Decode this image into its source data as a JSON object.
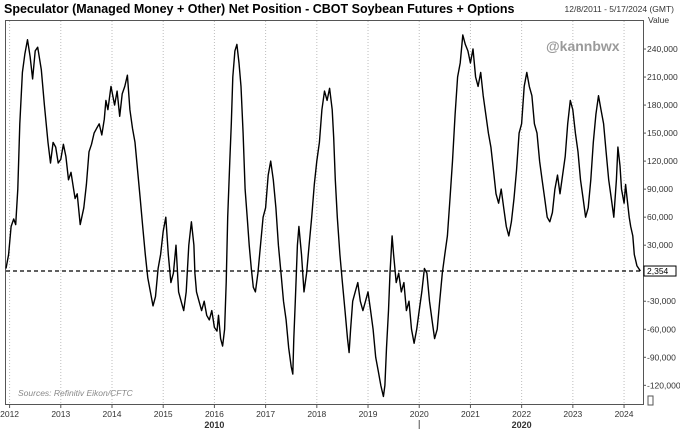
{
  "header": {
    "title": "Speculator (Managed Money + Other) Net Position - CBOT Soybean Futures + Options",
    "date_range": "12/8/2011 - 5/17/2024 (GMT)",
    "value_label": "Value"
  },
  "watermark": "@kannbwx",
  "source": "Sources: Refinitiv Eikon/CFTC",
  "colors": {
    "line": "#000000",
    "reference": "#000000",
    "grid": "#bdbdbd",
    "last_value_box": "#000000"
  },
  "chart_data": {
    "type": "line",
    "title": "Speculator (Managed Money + Other) Net Position - CBOT Soybean Futures + Options",
    "xlabel": "",
    "ylabel": "Value",
    "x_range": [
      2011.93,
      2024.37
    ],
    "ylim": [
      -140000,
      270000
    ],
    "y_ticks": [
      -120000,
      -90000,
      -60000,
      -30000,
      0,
      30000,
      60000,
      90000,
      120000,
      150000,
      180000,
      210000,
      240000
    ],
    "y_tick_labels": [
      "-120,000",
      "-90,000",
      "-60,000",
      "-30,000",
      "0",
      "30,000",
      "60,000",
      "90,000",
      "120,000",
      "150,000",
      "180,000",
      "210,000",
      "240,000"
    ],
    "x_ticks": [
      2012,
      2013,
      2014,
      2015,
      2016,
      2017,
      2018,
      2019,
      2020,
      2021,
      2022,
      2023,
      2024
    ],
    "x_tick_labels": [
      "2012",
      "2013",
      "2014",
      "2015",
      "2016",
      "2017",
      "2018",
      "2019",
      "2020",
      "2021",
      "2022",
      "2023",
      "2024"
    ],
    "decade_labels": [
      {
        "x": 2016,
        "label": "2010"
      },
      {
        "x": 2022,
        "label": "2020"
      }
    ],
    "grid": "vertical dotted at year ticks",
    "reference_line": {
      "y": 2354,
      "style": "dashed"
    },
    "last_value": 2354,
    "last_value_label": "2,354",
    "series": [
      {
        "values": [
          [
            2011.93,
            5000
          ],
          [
            2011.98,
            20000
          ],
          [
            2012.03,
            50000
          ],
          [
            2012.08,
            58000
          ],
          [
            2012.12,
            52000
          ],
          [
            2012.16,
            90000
          ],
          [
            2012.2,
            160000
          ],
          [
            2012.25,
            215000
          ],
          [
            2012.3,
            235000
          ],
          [
            2012.35,
            250000
          ],
          [
            2012.4,
            232000
          ],
          [
            2012.45,
            208000
          ],
          [
            2012.5,
            238000
          ],
          [
            2012.55,
            242000
          ],
          [
            2012.62,
            218000
          ],
          [
            2012.68,
            180000
          ],
          [
            2012.75,
            140000
          ],
          [
            2012.8,
            118000
          ],
          [
            2012.85,
            140000
          ],
          [
            2012.9,
            135000
          ],
          [
            2012.95,
            118000
          ],
          [
            2013.0,
            122000
          ],
          [
            2013.05,
            138000
          ],
          [
            2013.1,
            125000
          ],
          [
            2013.15,
            100000
          ],
          [
            2013.2,
            108000
          ],
          [
            2013.25,
            90000
          ],
          [
            2013.28,
            80000
          ],
          [
            2013.32,
            85000
          ],
          [
            2013.38,
            52000
          ],
          [
            2013.45,
            70000
          ],
          [
            2013.5,
            95000
          ],
          [
            2013.55,
            130000
          ],
          [
            2013.6,
            138000
          ],
          [
            2013.65,
            150000
          ],
          [
            2013.7,
            155000
          ],
          [
            2013.75,
            160000
          ],
          [
            2013.8,
            148000
          ],
          [
            2013.85,
            165000
          ],
          [
            2013.88,
            185000
          ],
          [
            2013.92,
            175000
          ],
          [
            2013.98,
            200000
          ],
          [
            2014.05,
            180000
          ],
          [
            2014.1,
            195000
          ],
          [
            2014.15,
            168000
          ],
          [
            2014.2,
            192000
          ],
          [
            2014.25,
            200000
          ],
          [
            2014.3,
            212000
          ],
          [
            2014.35,
            175000
          ],
          [
            2014.4,
            155000
          ],
          [
            2014.45,
            140000
          ],
          [
            2014.5,
            110000
          ],
          [
            2014.55,
            80000
          ],
          [
            2014.6,
            50000
          ],
          [
            2014.65,
            20000
          ],
          [
            2014.7,
            -5000
          ],
          [
            2014.75,
            -20000
          ],
          [
            2014.8,
            -35000
          ],
          [
            2014.85,
            -25000
          ],
          [
            2014.9,
            5000
          ],
          [
            2014.95,
            20000
          ],
          [
            2015.0,
            45000
          ],
          [
            2015.05,
            60000
          ],
          [
            2015.1,
            20000
          ],
          [
            2015.15,
            -10000
          ],
          [
            2015.2,
            0
          ],
          [
            2015.25,
            30000
          ],
          [
            2015.3,
            -20000
          ],
          [
            2015.35,
            -30000
          ],
          [
            2015.4,
            -40000
          ],
          [
            2015.45,
            -20000
          ],
          [
            2015.5,
            30000
          ],
          [
            2015.55,
            55000
          ],
          [
            2015.6,
            30000
          ],
          [
            2015.62,
            0
          ],
          [
            2015.65,
            -20000
          ],
          [
            2015.7,
            -30000
          ],
          [
            2015.75,
            -40000
          ],
          [
            2015.8,
            -30000
          ],
          [
            2015.85,
            -45000
          ],
          [
            2015.9,
            -50000
          ],
          [
            2015.95,
            -40000
          ],
          [
            2016.0,
            -58000
          ],
          [
            2016.05,
            -62000
          ],
          [
            2016.08,
            -45000
          ],
          [
            2016.12,
            -70000
          ],
          [
            2016.16,
            -78000
          ],
          [
            2016.2,
            -60000
          ],
          [
            2016.23,
            -10000
          ],
          [
            2016.26,
            60000
          ],
          [
            2016.3,
            120000
          ],
          [
            2016.33,
            160000
          ],
          [
            2016.36,
            210000
          ],
          [
            2016.4,
            238000
          ],
          [
            2016.44,
            245000
          ],
          [
            2016.48,
            225000
          ],
          [
            2016.52,
            200000
          ],
          [
            2016.56,
            150000
          ],
          [
            2016.6,
            90000
          ],
          [
            2016.64,
            60000
          ],
          [
            2016.68,
            30000
          ],
          [
            2016.72,
            5000
          ],
          [
            2016.76,
            -15000
          ],
          [
            2016.8,
            -20000
          ],
          [
            2016.85,
            0
          ],
          [
            2016.9,
            30000
          ],
          [
            2016.95,
            60000
          ],
          [
            2017.0,
            70000
          ],
          [
            2017.05,
            105000
          ],
          [
            2017.1,
            120000
          ],
          [
            2017.15,
            100000
          ],
          [
            2017.2,
            70000
          ],
          [
            2017.25,
            30000
          ],
          [
            2017.3,
            0
          ],
          [
            2017.35,
            -30000
          ],
          [
            2017.4,
            -50000
          ],
          [
            2017.45,
            -80000
          ],
          [
            2017.5,
            -100000
          ],
          [
            2017.53,
            -108000
          ],
          [
            2017.55,
            -70000
          ],
          [
            2017.58,
            -30000
          ],
          [
            2017.62,
            30000
          ],
          [
            2017.65,
            50000
          ],
          [
            2017.7,
            20000
          ],
          [
            2017.75,
            -20000
          ],
          [
            2017.8,
            0
          ],
          [
            2017.85,
            30000
          ],
          [
            2017.9,
            60000
          ],
          [
            2017.95,
            95000
          ],
          [
            2018.0,
            120000
          ],
          [
            2018.05,
            140000
          ],
          [
            2018.1,
            175000
          ],
          [
            2018.15,
            195000
          ],
          [
            2018.2,
            185000
          ],
          [
            2018.25,
            198000
          ],
          [
            2018.3,
            175000
          ],
          [
            2018.33,
            145000
          ],
          [
            2018.36,
            100000
          ],
          [
            2018.4,
            60000
          ],
          [
            2018.45,
            20000
          ],
          [
            2018.5,
            -10000
          ],
          [
            2018.55,
            -40000
          ],
          [
            2018.6,
            -70000
          ],
          [
            2018.63,
            -85000
          ],
          [
            2018.66,
            -60000
          ],
          [
            2018.7,
            -30000
          ],
          [
            2018.75,
            -20000
          ],
          [
            2018.8,
            -10000
          ],
          [
            2018.85,
            -30000
          ],
          [
            2018.9,
            -40000
          ],
          [
            2018.95,
            -30000
          ],
          [
            2019.0,
            -20000
          ],
          [
            2019.05,
            -40000
          ],
          [
            2019.1,
            -60000
          ],
          [
            2019.15,
            -90000
          ],
          [
            2019.2,
            -105000
          ],
          [
            2019.25,
            -120000
          ],
          [
            2019.3,
            -132000
          ],
          [
            2019.33,
            -120000
          ],
          [
            2019.36,
            -80000
          ],
          [
            2019.4,
            -40000
          ],
          [
            2019.43,
            0
          ],
          [
            2019.47,
            40000
          ],
          [
            2019.5,
            20000
          ],
          [
            2019.55,
            -10000
          ],
          [
            2019.6,
            0
          ],
          [
            2019.65,
            -20000
          ],
          [
            2019.7,
            -10000
          ],
          [
            2019.75,
            -40000
          ],
          [
            2019.8,
            -30000
          ],
          [
            2019.85,
            -60000
          ],
          [
            2019.9,
            -75000
          ],
          [
            2019.95,
            -60000
          ],
          [
            2020.0,
            -40000
          ],
          [
            2020.05,
            -20000
          ],
          [
            2020.1,
            5000
          ],
          [
            2020.15,
            0
          ],
          [
            2020.2,
            -30000
          ],
          [
            2020.25,
            -50000
          ],
          [
            2020.3,
            -70000
          ],
          [
            2020.35,
            -60000
          ],
          [
            2020.4,
            -30000
          ],
          [
            2020.45,
            0
          ],
          [
            2020.5,
            20000
          ],
          [
            2020.55,
            40000
          ],
          [
            2020.6,
            80000
          ],
          [
            2020.65,
            120000
          ],
          [
            2020.7,
            170000
          ],
          [
            2020.75,
            210000
          ],
          [
            2020.8,
            225000
          ],
          [
            2020.85,
            255000
          ],
          [
            2020.9,
            245000
          ],
          [
            2020.95,
            238000
          ],
          [
            2021.0,
            225000
          ],
          [
            2021.05,
            240000
          ],
          [
            2021.1,
            210000
          ],
          [
            2021.15,
            200000
          ],
          [
            2021.2,
            215000
          ],
          [
            2021.25,
            190000
          ],
          [
            2021.3,
            170000
          ],
          [
            2021.35,
            150000
          ],
          [
            2021.4,
            135000
          ],
          [
            2021.45,
            110000
          ],
          [
            2021.5,
            85000
          ],
          [
            2021.55,
            75000
          ],
          [
            2021.6,
            90000
          ],
          [
            2021.65,
            70000
          ],
          [
            2021.7,
            50000
          ],
          [
            2021.75,
            40000
          ],
          [
            2021.8,
            55000
          ],
          [
            2021.85,
            80000
          ],
          [
            2021.9,
            110000
          ],
          [
            2021.95,
            150000
          ],
          [
            2022.0,
            160000
          ],
          [
            2022.05,
            200000
          ],
          [
            2022.1,
            215000
          ],
          [
            2022.15,
            200000
          ],
          [
            2022.2,
            190000
          ],
          [
            2022.25,
            160000
          ],
          [
            2022.3,
            150000
          ],
          [
            2022.35,
            120000
          ],
          [
            2022.4,
            100000
          ],
          [
            2022.45,
            80000
          ],
          [
            2022.5,
            60000
          ],
          [
            2022.55,
            55000
          ],
          [
            2022.6,
            65000
          ],
          [
            2022.65,
            90000
          ],
          [
            2022.7,
            105000
          ],
          [
            2022.75,
            85000
          ],
          [
            2022.8,
            105000
          ],
          [
            2022.85,
            125000
          ],
          [
            2022.9,
            160000
          ],
          [
            2022.95,
            185000
          ],
          [
            2023.0,
            175000
          ],
          [
            2023.05,
            150000
          ],
          [
            2023.1,
            130000
          ],
          [
            2023.15,
            100000
          ],
          [
            2023.2,
            80000
          ],
          [
            2023.25,
            60000
          ],
          [
            2023.3,
            70000
          ],
          [
            2023.35,
            100000
          ],
          [
            2023.4,
            140000
          ],
          [
            2023.45,
            170000
          ],
          [
            2023.5,
            190000
          ],
          [
            2023.55,
            175000
          ],
          [
            2023.6,
            160000
          ],
          [
            2023.65,
            130000
          ],
          [
            2023.7,
            100000
          ],
          [
            2023.75,
            80000
          ],
          [
            2023.8,
            60000
          ],
          [
            2023.85,
            100000
          ],
          [
            2023.88,
            135000
          ],
          [
            2023.92,
            115000
          ],
          [
            2023.95,
            90000
          ],
          [
            2024.0,
            75000
          ],
          [
            2024.03,
            95000
          ],
          [
            2024.06,
            80000
          ],
          [
            2024.1,
            60000
          ],
          [
            2024.13,
            50000
          ],
          [
            2024.17,
            40000
          ],
          [
            2024.2,
            20000
          ],
          [
            2024.25,
            8000
          ],
          [
            2024.32,
            2354
          ]
        ]
      }
    ]
  }
}
